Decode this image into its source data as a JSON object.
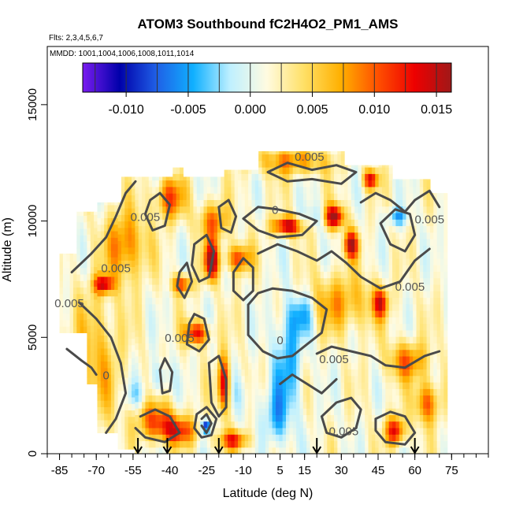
{
  "chart_data": {
    "type": "heatmap",
    "title": "ATOM3 Southbound fC2H4O2_PM1_AMS",
    "subtitle_flights": "Flts: 2,3,4,5,6,7",
    "subtitle_dates": "MMDD: 1001,1004,1006,1008,1011,1014",
    "xlabel": "Latitude (deg N)",
    "ylabel": "Altitude (m)",
    "xlim": [
      -90,
      90
    ],
    "ylim": [
      0,
      17500
    ],
    "x_ticks": [
      -85,
      -70,
      -55,
      -40,
      -25,
      -10,
      5,
      15,
      30,
      45,
      60,
      75
    ],
    "x_tick_labels": [
      "-85",
      "-70",
      "-55",
      "-40",
      "-25",
      "-10",
      "5",
      "15",
      "30",
      "45",
      "60",
      "75"
    ],
    "y_ticks": [
      0,
      5000,
      10000,
      15000
    ],
    "y_tick_labels": [
      "0",
      "5000",
      "10000",
      "15000"
    ],
    "colorbar": {
      "range": [
        -0.0135,
        0.0162
      ],
      "ticks": [
        -0.01,
        -0.005,
        0,
        0.005,
        0.01,
        0.015
      ],
      "tick_labels": [
        "-0.010",
        "-0.005",
        "0.000",
        "0.005",
        "0.010",
        "0.015"
      ],
      "colors": [
        "#7a1cf0",
        "#0000aa",
        "#1f5fe6",
        "#10b0ff",
        "#bff0ff",
        "#fffbe0",
        "#ffe066",
        "#ffb000",
        "#ff5000",
        "#ee0000",
        "#a01818"
      ]
    },
    "contour_labels": [
      {
        "text": "0.005",
        "lat": 17,
        "alt": 12600
      },
      {
        "text": "0",
        "lat": 3,
        "alt": 10300
      },
      {
        "text": "0.005",
        "lat": -50,
        "alt": 10000
      },
      {
        "text": "0.005",
        "lat": -62,
        "alt": 7800
      },
      {
        "text": "0.005",
        "lat": -81,
        "alt": 6300
      },
      {
        "text": "0.005",
        "lat": -36,
        "alt": 4800
      },
      {
        "text": "0",
        "lat": -66,
        "alt": 3200
      },
      {
        "text": "0",
        "lat": 5,
        "alt": 4700
      },
      {
        "text": "0.005",
        "lat": 27,
        "alt": 3900
      },
      {
        "text": "0.005",
        "lat": 58,
        "alt": 7000
      },
      {
        "text": "0.005",
        "lat": 66,
        "alt": 9900
      },
      {
        "text": "0.005",
        "lat": 31,
        "alt": 800
      }
    ],
    "flight_markers_lat": [
      -53,
      -41,
      -20,
      20,
      60
    ],
    "data_extent": {
      "lat": [
        -85,
        72
      ],
      "alt": [
        0,
        13000
      ]
    }
  }
}
